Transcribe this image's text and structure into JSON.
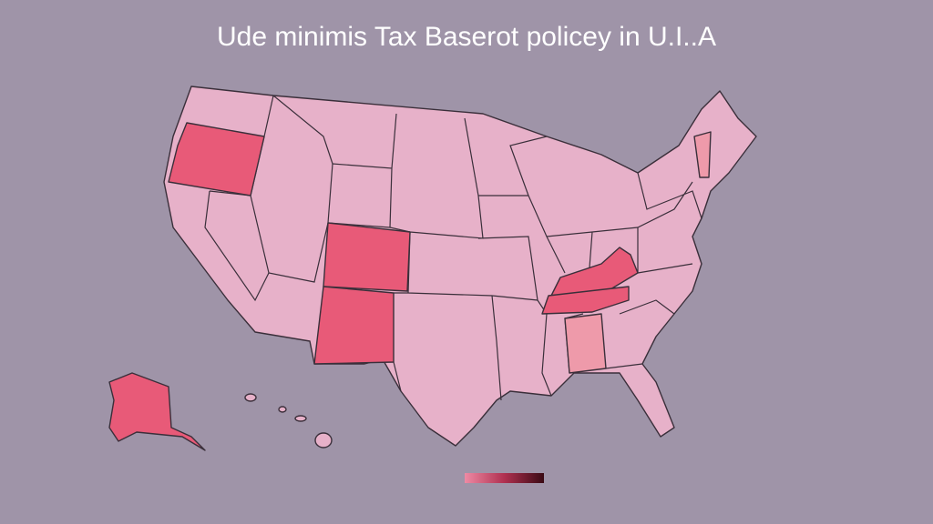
{
  "title": "Ude minimis Tax Baserot policey in U.I..A"
}
